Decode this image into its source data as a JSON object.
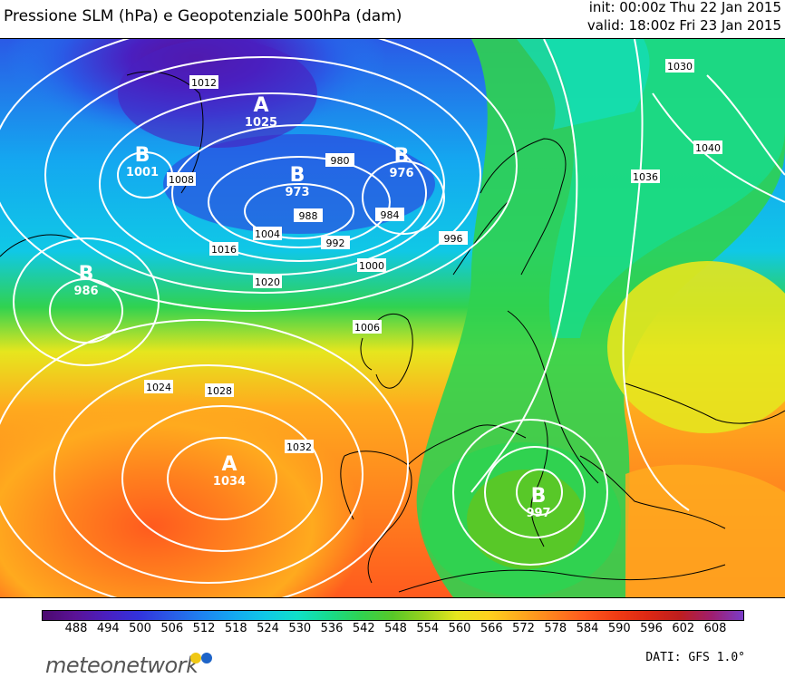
{
  "header": {
    "title": "Pressione SLM (hPa) e Geopotenziale 500hPa (dam)",
    "init": "init: 00:00z Thu 22 Jan 2015",
    "valid": "valid: 18:00z Fri 23 Jan 2015"
  },
  "colorbar": {
    "ticks": [
      "488",
      "494",
      "500",
      "506",
      "512",
      "518",
      "524",
      "530",
      "536",
      "542",
      "548",
      "554",
      "560",
      "566",
      "572",
      "578",
      "584",
      "590",
      "596",
      "602",
      "608"
    ],
    "colors": [
      "#4b0a6e",
      "#5a1296",
      "#4a1fc0",
      "#3232dc",
      "#2a5ae6",
      "#1e82f0",
      "#14a8f0",
      "#10c8e6",
      "#10e0c8",
      "#18dc8c",
      "#30d250",
      "#58c828",
      "#9ad21e",
      "#e6e61e",
      "#ffd21e",
      "#ffaa1e",
      "#ff821e",
      "#ff5a1e",
      "#f03c14",
      "#dc2814",
      "#be1e1e",
      "#a01e6e",
      "#7a3cc8"
    ]
  },
  "map": {
    "centers": [
      {
        "letter": "A",
        "value": "1025"
      },
      {
        "letter": "B",
        "value": "1001"
      },
      {
        "letter": "B",
        "value": "973"
      },
      {
        "letter": "B",
        "value": "976"
      },
      {
        "letter": "B",
        "value": "986"
      },
      {
        "letter": "A",
        "value": "1034"
      },
      {
        "letter": "B",
        "value": "997"
      }
    ],
    "isobar_labels": [
      "1012",
      "1008",
      "1004",
      "1000",
      "996",
      "992",
      "988",
      "984",
      "980",
      "1016",
      "1020",
      "1024",
      "1028",
      "1032",
      "1036",
      "1040",
      "1030",
      "1006"
    ]
  },
  "footer": {
    "logo": "meteonetwork",
    "dati": "DATI: GFS 1.0°",
    "logo_colors": [
      "#f0c814",
      "#1e64c8"
    ]
  }
}
